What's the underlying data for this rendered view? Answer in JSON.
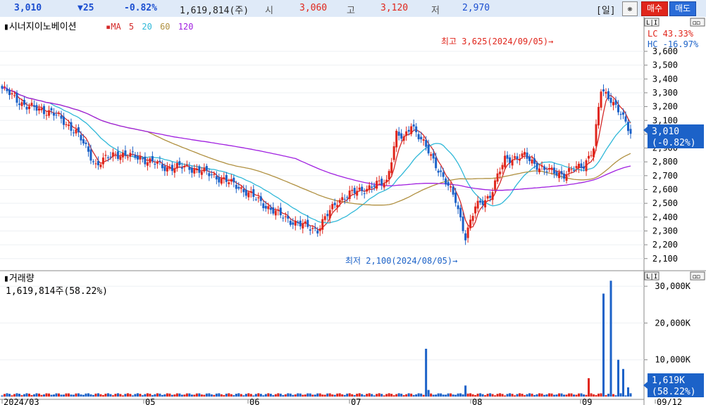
{
  "quote": {
    "price": "3,010",
    "change": "▼25",
    "change_pct": "-0.82%",
    "volume": "1,619,814(주)",
    "open_label": "시",
    "open": "3,060",
    "high_label": "고",
    "high": "3,120",
    "low_label": "저",
    "low": "2,970"
  },
  "toolbar": {
    "period_label": "[일]",
    "settings_icon": "❋",
    "buy_label": "매수",
    "sell_label": "매도"
  },
  "price_panel": {
    "stock_name": "시너지이노베이션",
    "ma_label": "MA",
    "ma_periods": [
      "5",
      "20",
      "60",
      "120"
    ],
    "ma_colors": [
      "#d42a2a",
      "#2fb8d8",
      "#b09040",
      "#a020e0"
    ],
    "lc_label": "LC  43.33%",
    "hc_label": "HC -16.97%",
    "high_annotation": "최고 3,625(2024/09/05)→",
    "low_annotation": "최저 2,100(2024/08/05)→",
    "current_tag_price": "3,010",
    "current_tag_pct": "(-0.82%)",
    "y_ticks": [
      "3,600",
      "3,500",
      "3,400",
      "3,300",
      "3,200",
      "3,100",
      "3,000",
      "2,900",
      "2,800",
      "2,700",
      "2,600",
      "2,500",
      "2,400",
      "2,300",
      "2,200",
      "2,100"
    ],
    "panel_icons": [
      "log-icon",
      "restore-icon"
    ]
  },
  "volume_panel": {
    "title": "거래량",
    "value_text": "1,619,814주(58.22%)",
    "y_ticks": [
      "30,000K",
      "20,000K",
      "10,000K"
    ],
    "current_tag_value": "1,619K",
    "current_tag_pct": "(58.22%)"
  },
  "x_axis": {
    "labels": [
      "2024/03",
      "05",
      "06",
      "07",
      "08",
      "09",
      "09/12"
    ]
  },
  "colors": {
    "up": "#e0261c",
    "down": "#1c62c8",
    "accent": "#1c62c8",
    "background": "#ffffff"
  }
}
